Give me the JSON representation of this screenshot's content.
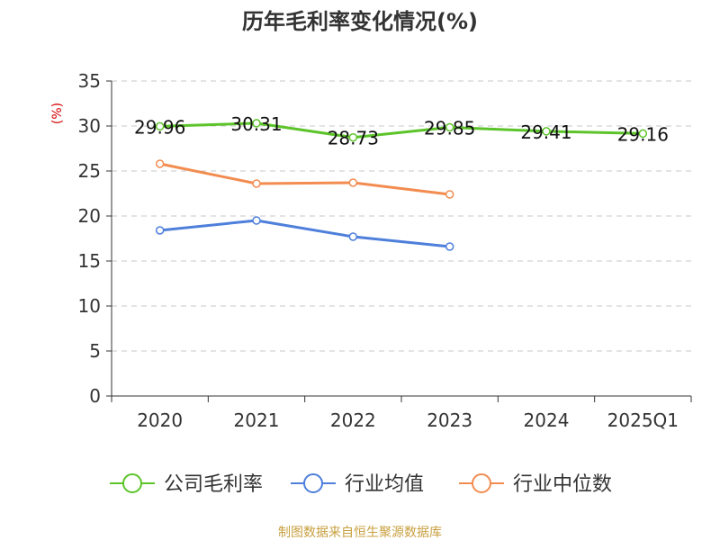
{
  "chart_data": {
    "type": "line",
    "title": "历年毛利率变化情况(%)",
    "ylabel": "(%)",
    "categories": [
      "2020",
      "2021",
      "2022",
      "2023",
      "2024",
      "2025Q1"
    ],
    "ylim": [
      0,
      35
    ],
    "yticks": [
      0,
      5,
      10,
      15,
      20,
      25,
      30,
      35
    ],
    "grid": true,
    "legend_position": "bottom",
    "series": [
      {
        "name": "公司毛利率",
        "color": "#5cc42a",
        "values": [
          29.96,
          30.31,
          28.73,
          29.85,
          29.41,
          29.16
        ],
        "labels": [
          "29.96",
          "30.31",
          "28.73",
          "29.85",
          "29.41",
          "29.16"
        ]
      },
      {
        "name": "行业均值",
        "color": "#4e7fdb",
        "values": [
          18.4,
          19.5,
          17.7,
          16.6,
          null,
          null
        ]
      },
      {
        "name": "行业中位数",
        "color": "#f28c50",
        "values": [
          25.8,
          23.6,
          23.7,
          22.4,
          null,
          null
        ]
      }
    ]
  },
  "source": "制图数据来自恒生聚源数据库"
}
